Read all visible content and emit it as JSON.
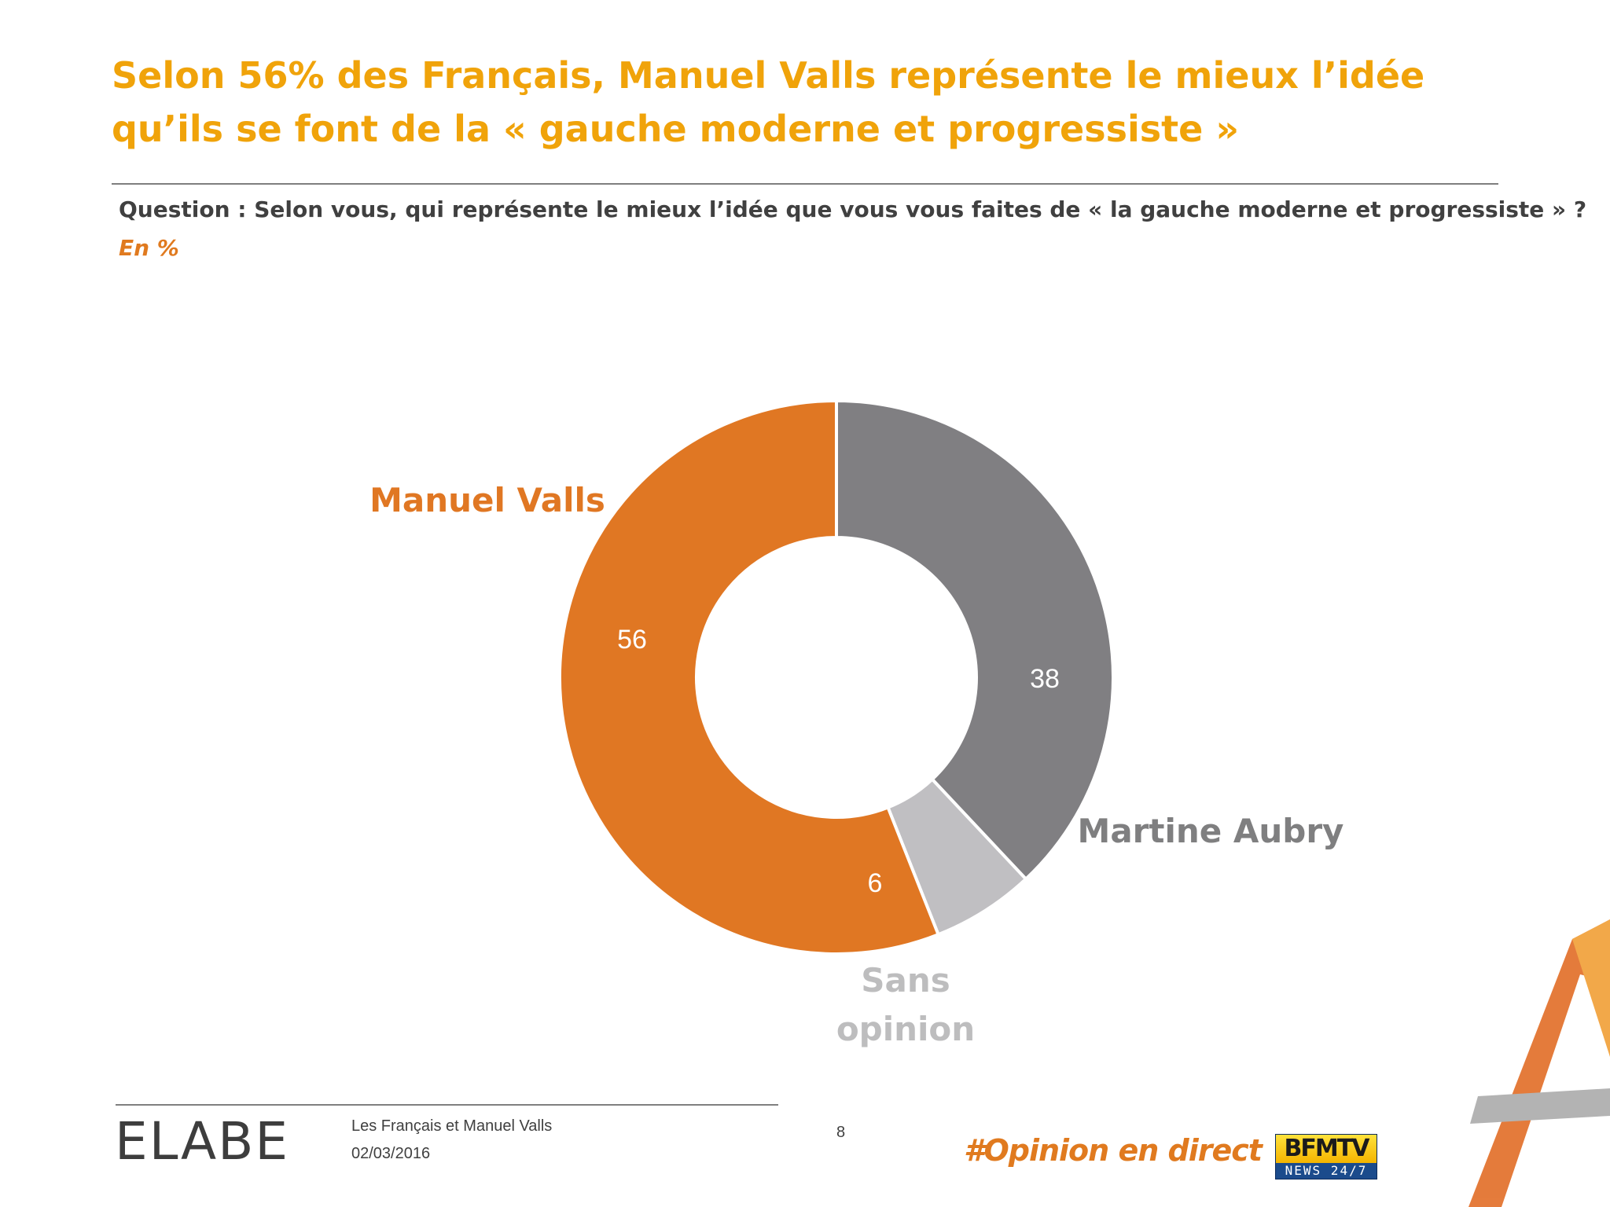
{
  "title": "Selon 56% des Français, Manuel Valls représente le mieux l’idée qu’ils se font de la « gauche moderne et progressiste »",
  "question": "Question : Selon vous, qui représente le mieux l’idée que vous vous faites de « la gauche moderne et progressiste » ?",
  "unit": "En %",
  "chart_data": {
    "type": "pie",
    "donut": true,
    "categories": [
      "Martine Aubry",
      "Sans opinion",
      "Manuel Valls"
    ],
    "values": [
      38,
      6,
      56
    ],
    "colors": [
      "#807f82",
      "#c0bfc2",
      "#e07723"
    ],
    "label_colors": [
      "#7f7f80",
      "#bdbdbe",
      "#e07723"
    ],
    "start_angle_deg": 0,
    "direction": "clockwise",
    "value_unit": "%"
  },
  "footer": {
    "logo": "ELABE",
    "title": "Les Français et Manuel Valls",
    "date": "02/03/2016",
    "page": "8",
    "hashtag": "#Opinion en direct",
    "bfm_main": "BFMTV",
    "bfm_sub": "NEWS 24/7"
  }
}
